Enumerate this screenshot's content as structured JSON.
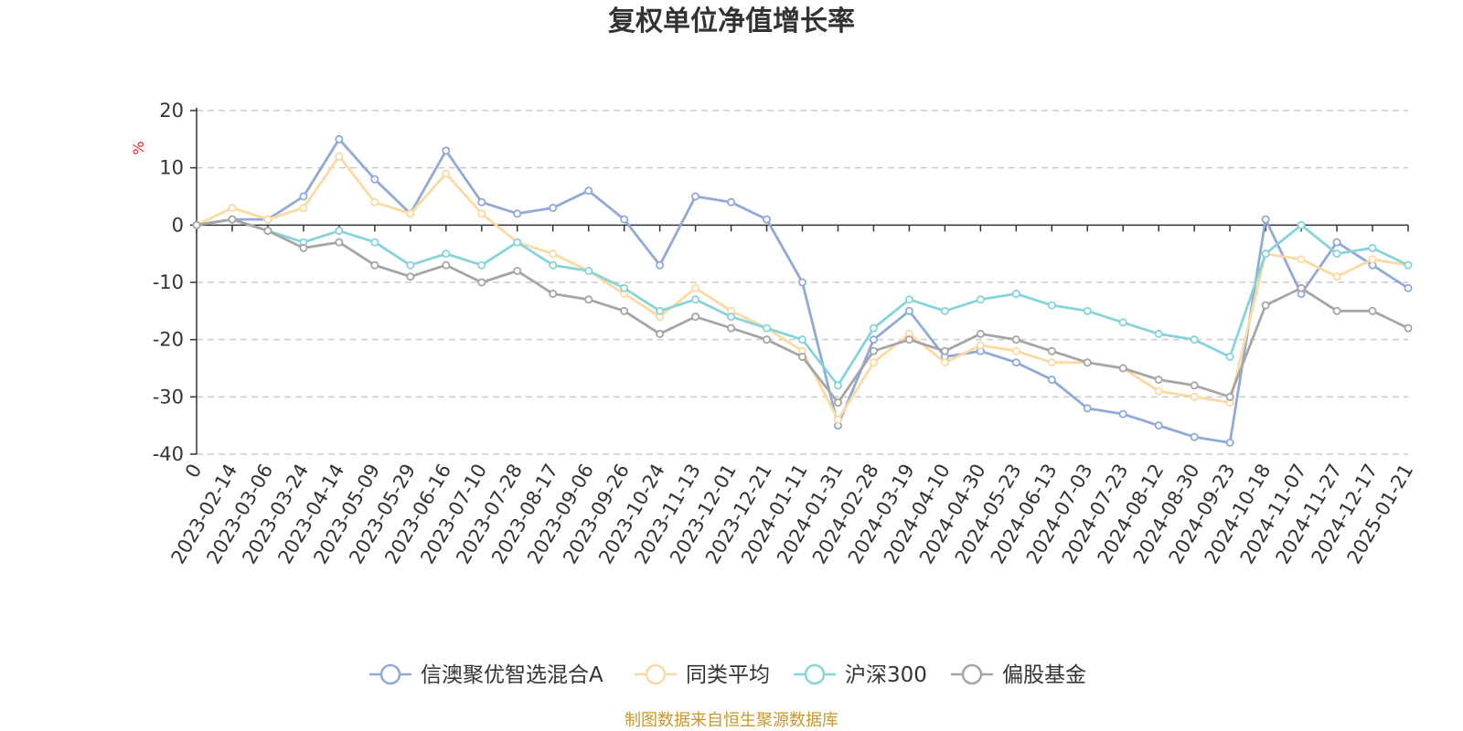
{
  "chart_data": {
    "type": "line",
    "title": "复权单位净值增长率",
    "ylabel": "%",
    "ylim": [
      -40,
      20
    ],
    "yticks": [
      20,
      10,
      0,
      -10,
      -20,
      -30,
      -40
    ],
    "xlabels": [
      "0",
      "2023-02-14",
      "2023-03-06",
      "2023-03-24",
      "2023-04-14",
      "2023-05-09",
      "2023-05-29",
      "2023-06-16",
      "2023-07-10",
      "2023-07-28",
      "2023-08-17",
      "2023-09-06",
      "2023-09-26",
      "2023-10-24",
      "2023-11-13",
      "2023-12-01",
      "2023-12-21",
      "2024-01-11",
      "2024-01-31",
      "2024-02-28",
      "2024-03-19",
      "2024-04-10",
      "2024-04-30",
      "2024-05-23",
      "2024-06-13",
      "2024-07-03",
      "2024-07-23",
      "2024-08-12",
      "2024-08-30",
      "2024-09-23",
      "2024-10-18",
      "2024-11-07",
      "2024-11-27",
      "2024-12-17",
      "2025-01-21"
    ],
    "x": [
      0,
      1,
      2,
      3,
      4,
      5,
      6,
      7,
      8,
      9,
      10,
      11,
      12,
      13,
      14,
      15,
      16,
      17,
      18,
      19,
      20,
      21,
      22,
      23,
      24,
      25,
      26,
      27,
      28,
      29,
      30,
      31,
      32,
      33,
      34
    ],
    "grid": true,
    "legend_position": "bottom",
    "series": [
      {
        "name": "信澳聚优智选混合A",
        "color": "#8fa9d9",
        "values": [
          0,
          1,
          1,
          5,
          15,
          8,
          2,
          13,
          4,
          2,
          3,
          6,
          1,
          -7,
          5,
          4,
          1,
          -10,
          -35,
          -20,
          -15,
          -23,
          -22,
          -24,
          -27,
          -32,
          -33,
          -35,
          -37,
          -38,
          1,
          -12,
          -3,
          -7,
          -11
        ]
      },
      {
        "name": "同类平均",
        "color": "#fcd9a0",
        "values": [
          0,
          3,
          1,
          3,
          12,
          4,
          2,
          9,
          2,
          -3,
          -5,
          -8,
          -12,
          -16,
          -11,
          -15,
          -18,
          -22,
          -34,
          -24,
          -19,
          -24,
          -21,
          -22,
          -24,
          -24,
          -25,
          -29,
          -30,
          -31,
          -5,
          -6,
          -9,
          -6,
          -7
        ]
      },
      {
        "name": "沪深300",
        "color": "#86d4d9",
        "values": [
          0,
          1,
          -1,
          -3,
          -1,
          -3,
          -7,
          -5,
          -7,
          -3,
          -7,
          -8,
          -11,
          -15,
          -13,
          -16,
          -18,
          -20,
          -28,
          -18,
          -13,
          -15,
          -13,
          -12,
          -14,
          -15,
          -17,
          -19,
          -20,
          -23,
          -5,
          0,
          -5,
          -4,
          -7
        ]
      },
      {
        "name": "偏股基金",
        "color": "#a5a5a5",
        "values": [
          0,
          1,
          -1,
          -4,
          -3,
          -7,
          -9,
          -7,
          -10,
          -8,
          -12,
          -13,
          -15,
          -19,
          -16,
          -18,
          -20,
          -23,
          -31,
          -22,
          -20,
          -22,
          -19,
          -20,
          -22,
          -24,
          -25,
          -27,
          -28,
          -30,
          -14,
          -11,
          -15,
          -15,
          -18
        ]
      }
    ]
  },
  "source_text": "制图数据来自恒生聚源数据库",
  "colors": {
    "axis": "#333333",
    "grid": "#cccccc",
    "unit": "#e02020",
    "source": "#c8962e"
  }
}
